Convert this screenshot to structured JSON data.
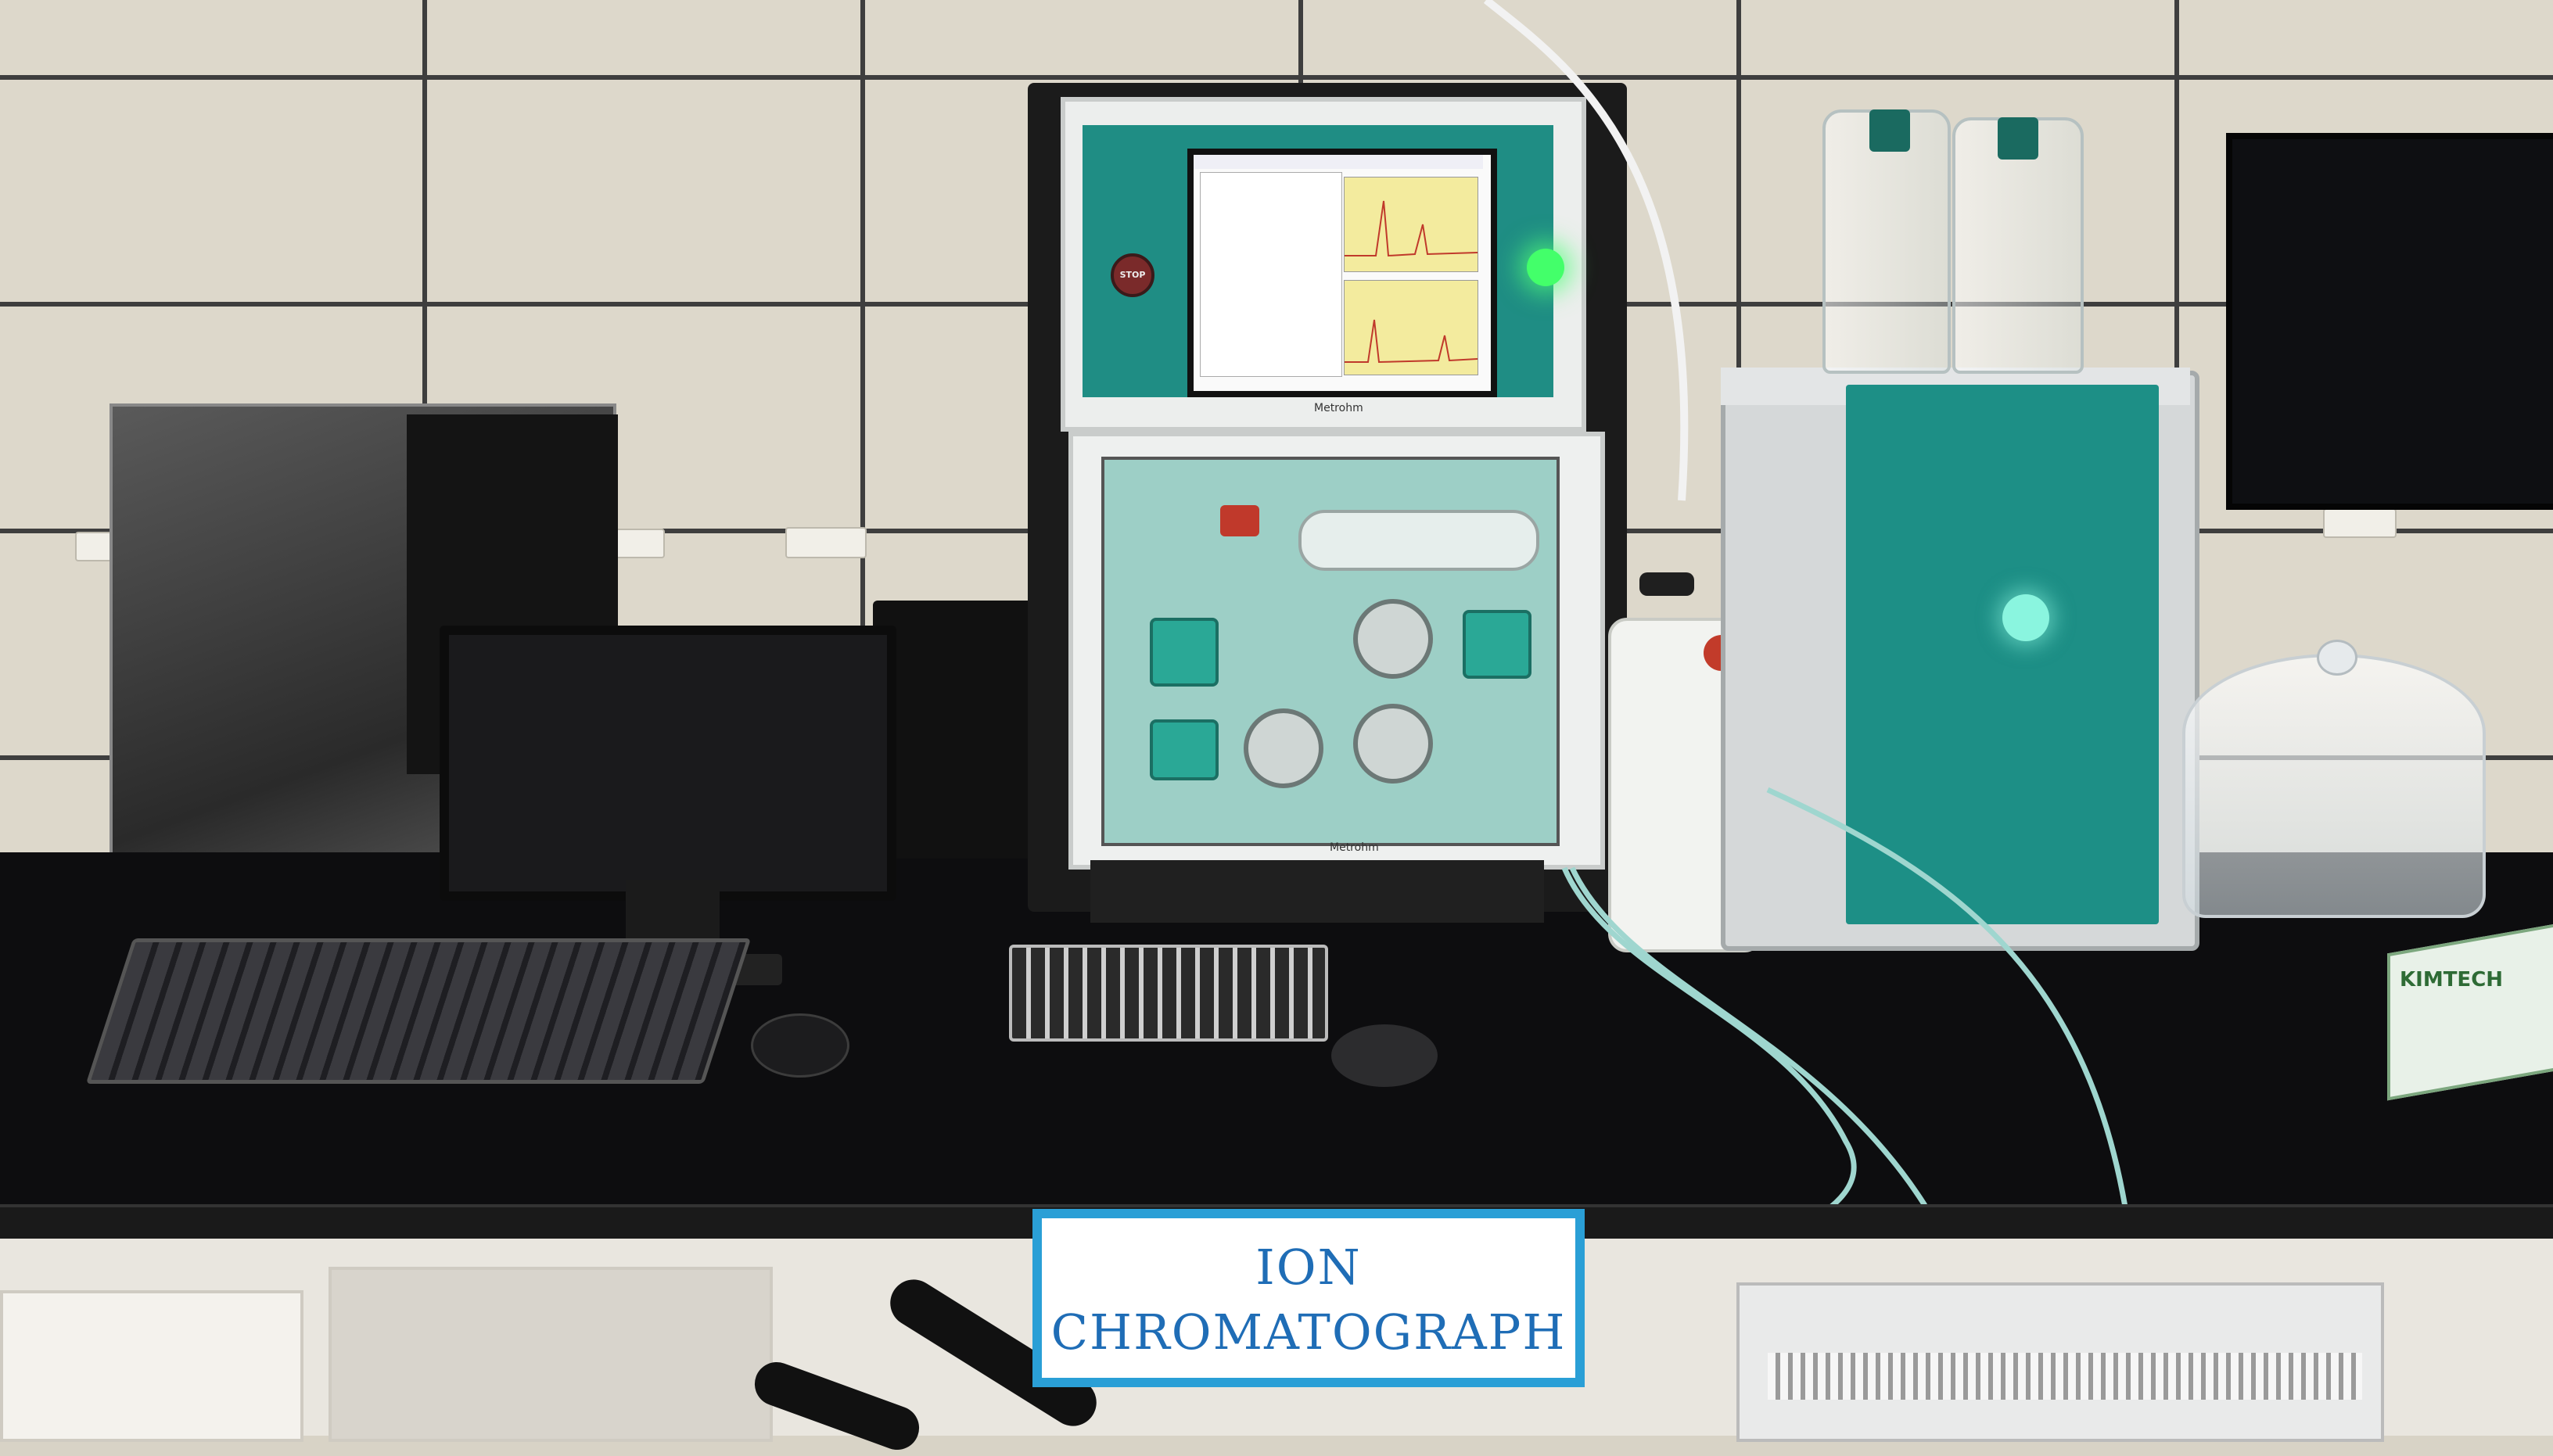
{
  "scene": {
    "description_tag": "lab-bench-photo",
    "colors": {
      "instrument_teal": "#1f8d84",
      "sign_border": "#2a9fd6",
      "sign_text": "#1f6db6",
      "bench": "#0d0d0f",
      "wall": "#ddd8cb"
    }
  },
  "sign": {
    "line1": "ION",
    "line2": "CHROMATOGRAPH"
  },
  "instrument": {
    "stop_label": "STOP",
    "brand": "Metrohm"
  },
  "consumables": {
    "tissue_box_label": "KIMTECH"
  }
}
